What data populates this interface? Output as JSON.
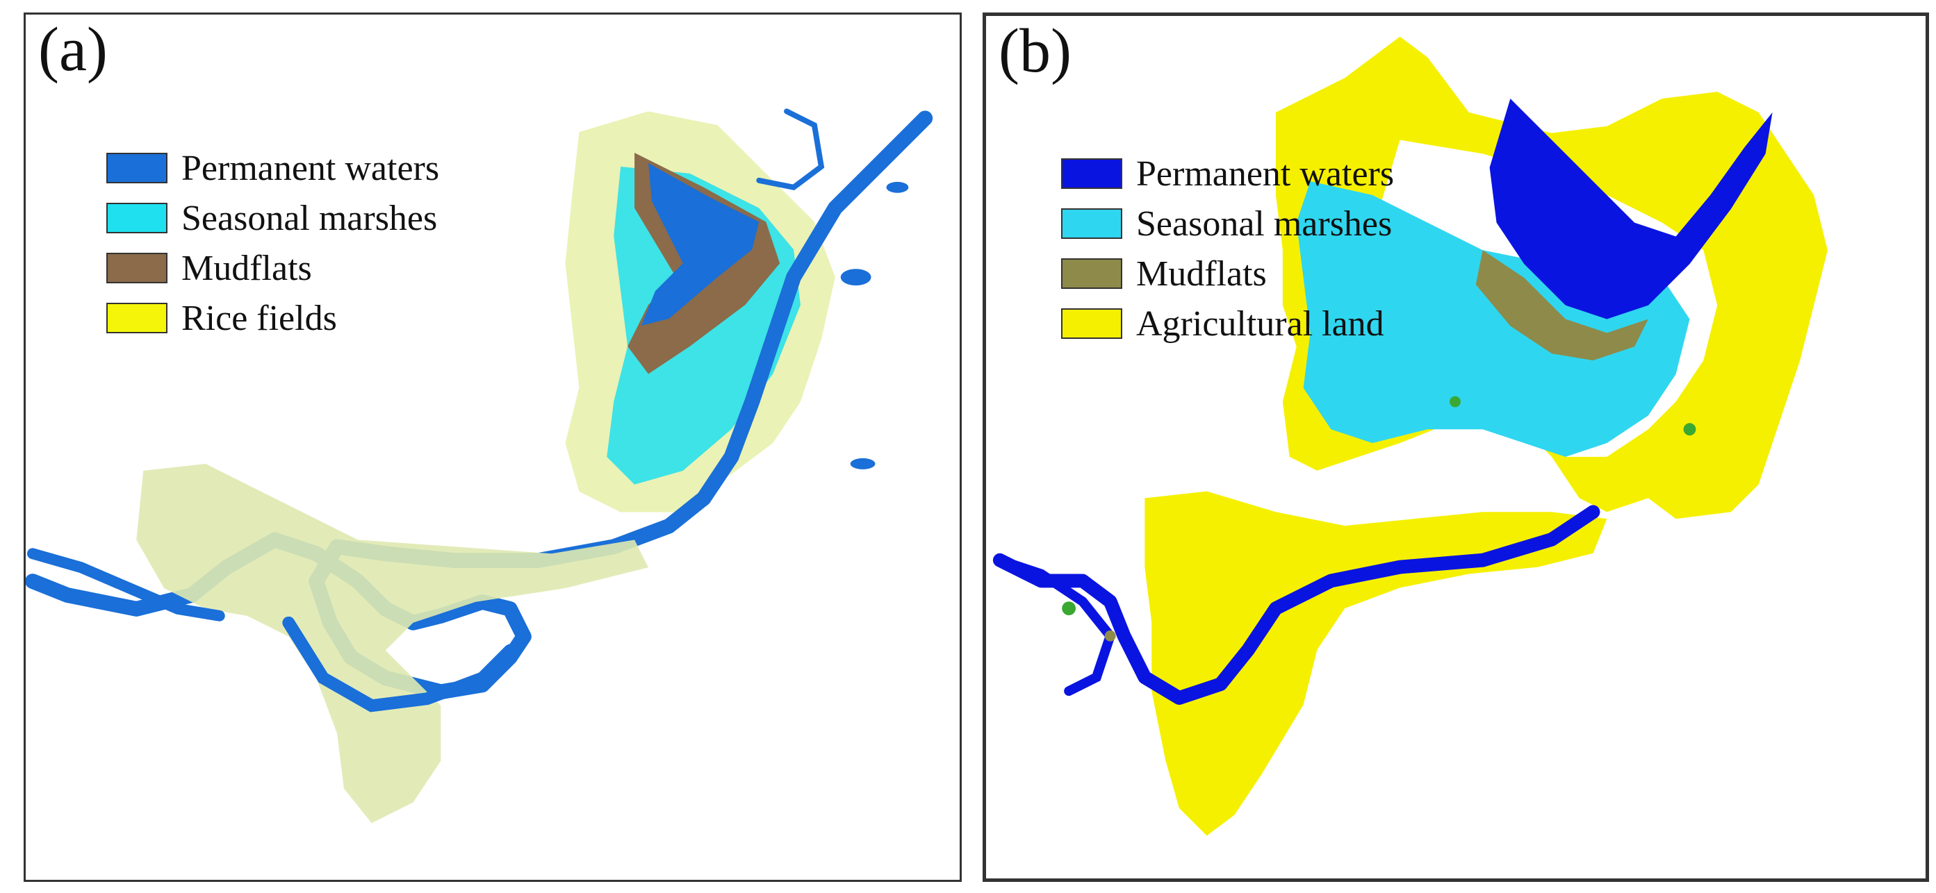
{
  "panels": [
    {
      "label": "(a)",
      "legend": [
        {
          "label": "Permanent waters",
          "color": "#1a6fd8"
        },
        {
          "label": "Seasonal marshes",
          "color": "#1fe0ef"
        },
        {
          "label": "Mudflats",
          "color": "#8b6b4a"
        },
        {
          "label": "Rice fields",
          "color": "#f5f50a"
        }
      ]
    },
    {
      "label": "(b)",
      "legend": [
        {
          "label": "Permanent waters",
          "color": "#0a14e0"
        },
        {
          "label": "Seasonal marshes",
          "color": "#2fd6ef"
        },
        {
          "label": "Mudflats",
          "color": "#8e8a4a"
        },
        {
          "label": "Agricultural land",
          "color": "#f5f000"
        }
      ]
    }
  ]
}
